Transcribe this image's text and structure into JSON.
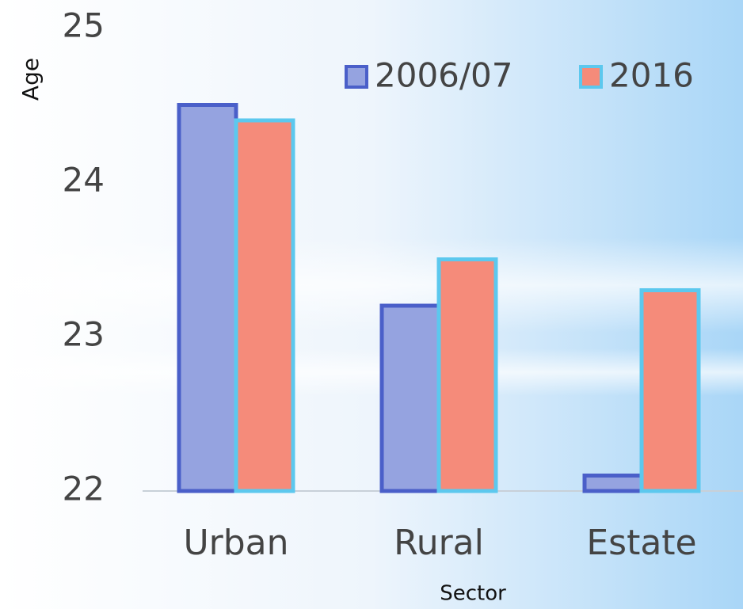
{
  "chart_data": {
    "type": "bar",
    "x_label": "Sector",
    "y_label": "Age",
    "categories": [
      "Urban",
      "Rural",
      "Estate"
    ],
    "series": [
      {
        "name": "2006/07",
        "color": "#95a3e0",
        "edgecolor": "#4a5fc9",
        "values": [
          24.5,
          23.2,
          22.1
        ]
      },
      {
        "name": "2016",
        "color": "#f58b7a",
        "edgecolor": "#5cc8ee",
        "values": [
          24.4,
          23.5,
          23.3
        ]
      }
    ],
    "ylim": [
      22,
      25
    ],
    "yticks": [
      22,
      23,
      24,
      25
    ],
    "grid": false,
    "legend": "top"
  }
}
